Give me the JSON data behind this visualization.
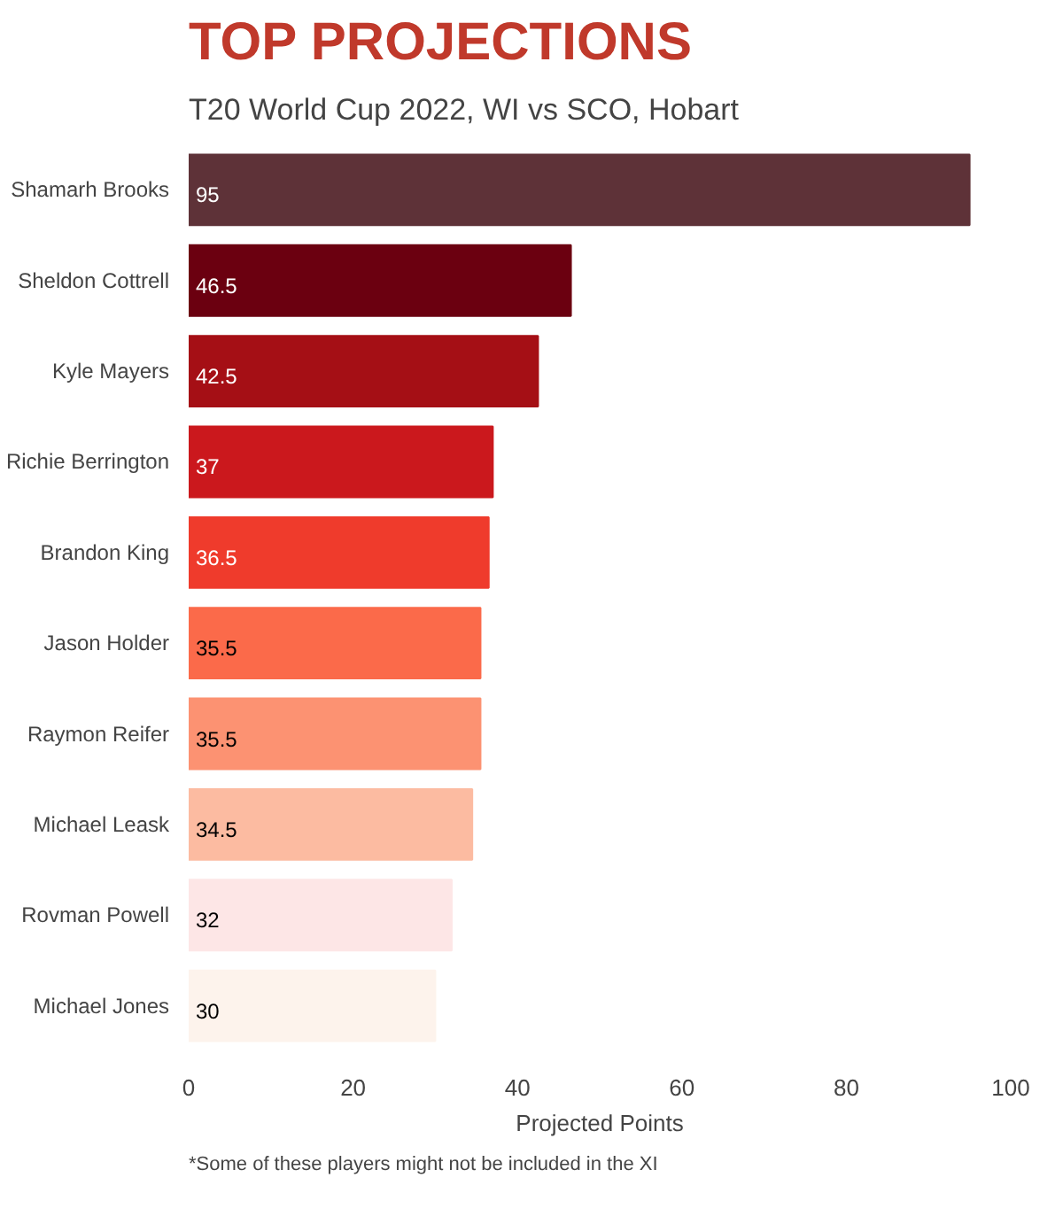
{
  "chart_data": {
    "type": "bar",
    "orientation": "horizontal",
    "title": "TOP PROJECTIONS",
    "subtitle": "T20 World Cup 2022, WI vs SCO, Hobart",
    "xlabel": "Projected Points",
    "categories": [
      "Shamarh Brooks",
      "Sheldon Cottrell",
      "Kyle Mayers",
      "Richie Berrington",
      "Brandon King",
      "Jason Holder",
      "Raymon Reifer",
      "Michael Leask",
      "Rovman Powell",
      "Michael Jones"
    ],
    "values": [
      95,
      46.5,
      42.5,
      37,
      36.5,
      35.5,
      35.5,
      34.5,
      32,
      30
    ],
    "colors": [
      "#5e3238",
      "#6b0010",
      "#a50f15",
      "#cb181d",
      "#ef3b2c",
      "#fb6a4a",
      "#fc9272",
      "#fcbba1",
      "#fde6e6",
      "#fdf3ec"
    ],
    "xlim": [
      0,
      100
    ],
    "xticks": [
      0,
      20,
      40,
      60,
      80,
      100
    ],
    "data_labels": true,
    "grid": false,
    "annotations": [
      "*Some of these players might not be included in the XI"
    ]
  }
}
